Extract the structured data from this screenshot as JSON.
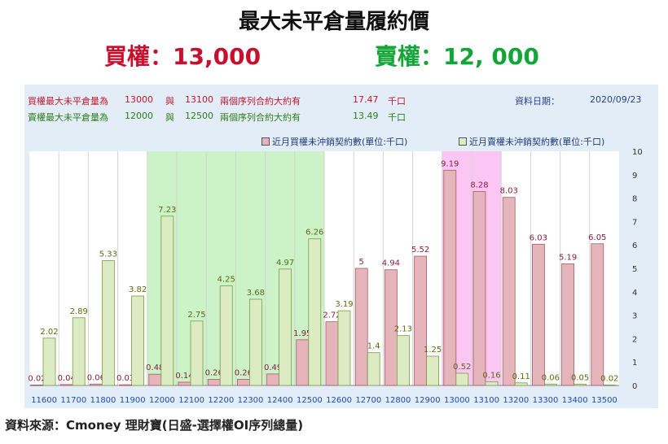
{
  "title": "最大未平倉量履約價",
  "summary": {
    "call": "買權：13,000",
    "put": "賣權：12, 000"
  },
  "info": {
    "call_row": {
      "label": "買權最大未平倉量為",
      "strike_a": "13000",
      "conj": "與",
      "strike_b": "13100",
      "desc": "兩個序列合約大約有",
      "value": "17.47",
      "unit": "千口"
    },
    "put_row": {
      "label": "賣權最大未平倉量為",
      "strike_a": "12000",
      "conj": "與",
      "strike_b": "12500",
      "desc": "兩個序列合約大約有",
      "value": "13.49",
      "unit": "千口"
    },
    "date_label": "資料日期：",
    "date_value": "2020/09/23"
  },
  "colors": {
    "call_bar": "#e6b4bb",
    "put_bar": "#dcebc2",
    "call_text": "#c8102e",
    "put_text": "#13a538",
    "put_highlight": "#ccf2c8",
    "call_highlight": "#fbc6f4"
  },
  "source": "資料來源：Cmoney 理財寶(日盛-選擇權OI序列總量)",
  "chart_data": {
    "type": "bar",
    "categories": [
      "11600",
      "11700",
      "11800",
      "11900",
      "12000",
      "12100",
      "12200",
      "12300",
      "12400",
      "12500",
      "12600",
      "12700",
      "12800",
      "12900",
      "13000",
      "13100",
      "13200",
      "13300",
      "13400",
      "13500"
    ],
    "series": [
      {
        "name": "近月買權未沖銷契約數(單位:千口)",
        "values": [
          0.02,
          0.04,
          0.06,
          0.03,
          0.48,
          0.14,
          0.26,
          0.26,
          0.49,
          1.95,
          2.72,
          5,
          4.94,
          5.52,
          9.19,
          8.28,
          8.03,
          6.03,
          5.19,
          6.05
        ],
        "labels": [
          "0.02",
          "0.04",
          "0.06",
          "0.03",
          "0.48",
          "0.14",
          "0.26",
          "0.26",
          "0.49",
          "1.95",
          "2.72",
          "5",
          "4.94",
          "5.52",
          "9.19",
          "8.28",
          "8.03",
          "6.03",
          "5.19",
          "6.05"
        ]
      },
      {
        "name": "近月賣權未沖銷契約數(單位:千口)",
        "values": [
          2.02,
          2.89,
          5.33,
          3.82,
          7.23,
          2.75,
          4.25,
          3.68,
          4.97,
          6.26,
          3.19,
          1.4,
          2.13,
          1.25,
          0.52,
          0.16,
          0.11,
          0.06,
          0.05,
          0.02
        ],
        "labels": [
          "2.02",
          "2.89",
          "5.33",
          "3.82",
          "7.23",
          "2.75",
          "4.25",
          "3.68",
          "4.97",
          "6.26",
          "3.19",
          "1.4",
          "2.13",
          "1.25",
          "0.52",
          "0.16",
          "0.11",
          "0.06",
          "0.05",
          "0.02"
        ]
      }
    ],
    "ylim": [
      0,
      10
    ],
    "yticks": [
      "0",
      "1",
      "2",
      "3",
      "4",
      "5",
      "6",
      "7",
      "8",
      "9",
      "10"
    ],
    "highlight_ranges": [
      {
        "from": "12000",
        "to": "12500",
        "series": "put"
      },
      {
        "from": "13000",
        "to": "13100",
        "series": "call"
      }
    ],
    "grid": "vertical",
    "legend_position": "top-right"
  }
}
